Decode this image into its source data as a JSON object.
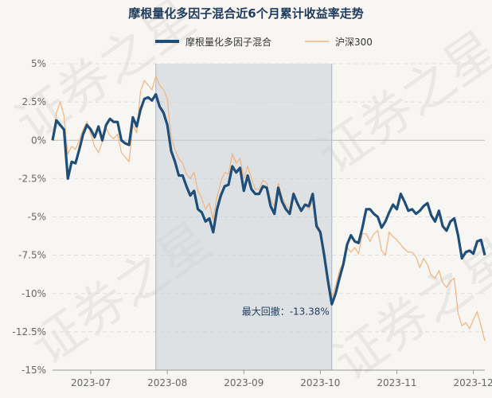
{
  "colors": {
    "fund": "#1f4e79",
    "index": "#f0b37e",
    "drawdown_fill": "#c7d0d8",
    "grid": "#dddddd",
    "zero_line": "#bbbbbb",
    "accent_text": "#1f3a5f"
  },
  "watermark": {
    "text": "证券之星"
  },
  "chart_data": {
    "type": "line",
    "title": "摩根量化多因子混合近6个月累计收益率走势",
    "xlabel": "",
    "ylabel": "",
    "ylim": [
      -15,
      5
    ],
    "y_ticks": [
      "5%",
      "2.5%",
      "0%",
      "-2.5%",
      "-5%",
      "-7.5%",
      "-10%",
      "-12.5%",
      "-15%"
    ],
    "y_tick_values": [
      5,
      2.5,
      0,
      -2.5,
      -5,
      -7.5,
      -10,
      -12.5,
      -15
    ],
    "x_tick_labels": [
      "2023-07",
      "2023-08",
      "2023-09",
      "2023-10",
      "2023-11",
      "2023-12"
    ],
    "x_tick_indices": [
      10,
      30,
      50,
      70,
      90,
      110
    ],
    "grid": true,
    "legend_position": "top-center",
    "series": [
      {
        "name": "摩根量化多因子混合",
        "values": [
          0,
          1.3,
          1.0,
          0.7,
          -2.5,
          -1.4,
          -1.5,
          -0.6,
          0.4,
          1.0,
          0.7,
          0.2,
          0.9,
          0.0,
          1.0,
          1.4,
          1.2,
          1.2,
          0.0,
          -0.2,
          -0.3,
          1.5,
          0.9,
          2.0,
          2.7,
          2.8,
          2.6,
          3.0,
          2.2,
          1.8,
          1.0,
          -0.7,
          -1.4,
          -2.3,
          -2.3,
          -3.0,
          -3.6,
          -3.3,
          -4.5,
          -4.7,
          -5.3,
          -5.1,
          -6.0,
          -4.5,
          -3.6,
          -3.0,
          -2.9,
          -1.7,
          -2.1,
          -1.8,
          -3.3,
          -2.3,
          -3.2,
          -3.5,
          -3.5,
          -3.0,
          -3.1,
          -4.3,
          -4.8,
          -3.1,
          -4.0,
          -4.5,
          -4.8,
          -3.5,
          -4.1,
          -4.6,
          -4.2,
          -4.3,
          -3.5,
          -5.6,
          -6.0,
          -7.5,
          -9.2,
          -10.7,
          -10.0,
          -9.0,
          -8.1,
          -6.8,
          -6.2,
          -6.6,
          -6.7,
          -5.7,
          -4.5,
          -4.5,
          -4.8,
          -5.0,
          -5.7,
          -5.3,
          -4.7,
          -4.2,
          -4.5,
          -3.5,
          -4.0,
          -4.6,
          -4.5,
          -4.8,
          -4.6,
          -4.3,
          -4.1,
          -4.9,
          -5.3,
          -4.6,
          -5.6,
          -5.9,
          -5.3,
          -5.1,
          -6.2,
          -7.7,
          -7.3,
          -7.2,
          -7.4,
          -6.6,
          -6.5,
          -7.5
        ],
        "drawdown_annotation": {
          "text": "最大回撤：-13.38%"
        }
      },
      {
        "name": "沪深300",
        "values": [
          0,
          1.8,
          2.5,
          1.6,
          -0.9,
          -0.4,
          -0.6,
          0.0,
          0.7,
          1.2,
          0.4,
          -0.4,
          -0.8,
          -0.1,
          0.8,
          0.3,
          0.1,
          0.4,
          -0.8,
          -1.1,
          -1.4,
          1.0,
          0.5,
          3.2,
          3.9,
          3.6,
          3.3,
          4.2,
          3.6,
          3.3,
          2.7,
          0.2,
          -0.6,
          -1.2,
          -1.5,
          -2.2,
          -2.5,
          -2.1,
          -3.3,
          -3.8,
          -4.5,
          -4.1,
          -5.2,
          -3.7,
          -2.7,
          -2.1,
          -2.2,
          -0.9,
          -1.5,
          -1.2,
          -2.5,
          -1.7,
          -2.5,
          -3.2,
          -3.2,
          -2.6,
          -2.8,
          -3.9,
          -4.3,
          -2.8,
          -3.7,
          -4.2,
          -4.5,
          -3.4,
          -4.1,
          -4.6,
          -4.2,
          -4.5,
          -3.9,
          -5.4,
          -5.9,
          -7.1,
          -8.9,
          -10.3,
          -9.5,
          -8.5,
          -8.0,
          -7.0,
          -7.3,
          -7.0,
          -7.4,
          -6.1,
          -6.1,
          -6.6,
          -6.1,
          -5.9,
          -7.2,
          -7.5,
          -6.0,
          -6.3,
          -6.5,
          -6.8,
          -7.1,
          -7.3,
          -7.3,
          -7.6,
          -8.3,
          -7.7,
          -8.1,
          -8.8,
          -9.0,
          -8.5,
          -9.3,
          -9.6,
          -9.2,
          -9.0,
          -11.3,
          -12.1,
          -11.9,
          -12.3,
          -11.7,
          -11.2,
          -12.1,
          -13.1
        ]
      }
    ],
    "drawdown_range_indices": [
      27,
      73
    ]
  }
}
